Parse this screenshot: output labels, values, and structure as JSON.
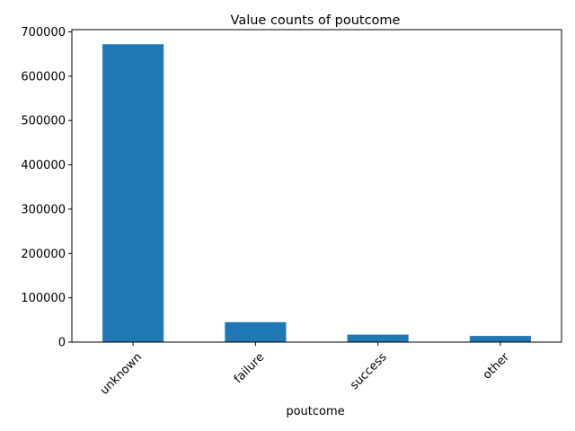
{
  "chart_data": {
    "type": "bar",
    "title": "Value counts of poutcome",
    "xlabel": "poutcome",
    "ylabel": "",
    "categories": [
      "unknown",
      "failure",
      "success",
      "other"
    ],
    "values": [
      672000,
      45000,
      17000,
      14000
    ],
    "ylim": [
      0,
      705000
    ],
    "yticks": [
      0,
      100000,
      200000,
      300000,
      400000,
      500000,
      600000,
      700000
    ],
    "ytick_labels": [
      "0",
      "100000",
      "200000",
      "300000",
      "400000",
      "500000",
      "600000",
      "700000"
    ],
    "bar_color": "#1f77b4",
    "grid": false,
    "legend": "none",
    "xtick_rotation_deg": 45
  }
}
